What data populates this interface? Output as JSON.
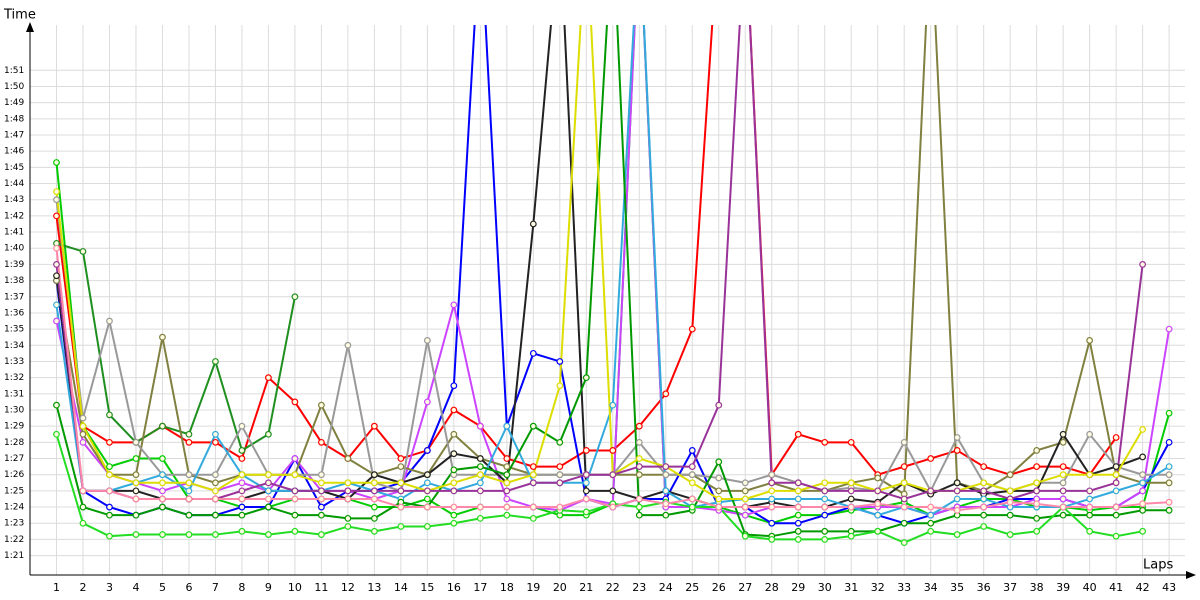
{
  "chart_data": {
    "type": "line",
    "x_label": "Laps",
    "y_label": "Time",
    "grid": true,
    "x": [
      1,
      2,
      3,
      4,
      5,
      6,
      7,
      8,
      9,
      10,
      11,
      12,
      13,
      14,
      15,
      16,
      17,
      18,
      19,
      20,
      21,
      22,
      23,
      24,
      25,
      26,
      27,
      28,
      29,
      30,
      31,
      32,
      33,
      34,
      35,
      36,
      37,
      38,
      39,
      40,
      41,
      42,
      43
    ],
    "xlim": [
      0,
      43.6
    ],
    "xticks": [
      1,
      2,
      3,
      4,
      5,
      6,
      7,
      8,
      9,
      10,
      11,
      12,
      13,
      14,
      15,
      16,
      17,
      18,
      19,
      20,
      21,
      22,
      23,
      24,
      25,
      26,
      27,
      28,
      29,
      30,
      31,
      32,
      33,
      34,
      35,
      36,
      37,
      38,
      39,
      40,
      41,
      42,
      43
    ],
    "ylim": [
      79.8,
      113.8
    ],
    "yticks": [
      {
        "value": 81,
        "label": "1:21"
      },
      {
        "value": 82,
        "label": "1:22"
      },
      {
        "value": 83,
        "label": "1:23"
      },
      {
        "value": 84,
        "label": "1:24"
      },
      {
        "value": 85,
        "label": "1:25"
      },
      {
        "value": 86,
        "label": "1:26"
      },
      {
        "value": 87,
        "label": "1:27"
      },
      {
        "value": 88,
        "label": "1:28"
      },
      {
        "value": 89,
        "label": "1:29"
      },
      {
        "value": 90,
        "label": "1:30"
      },
      {
        "value": 91,
        "label": "1:31"
      },
      {
        "value": 92,
        "label": "1:32"
      },
      {
        "value": 93,
        "label": "1:33"
      },
      {
        "value": 94,
        "label": "1:34"
      },
      {
        "value": 95,
        "label": "1:35"
      },
      {
        "value": 96,
        "label": "1:36"
      },
      {
        "value": 97,
        "label": "1:37"
      },
      {
        "value": 98,
        "label": "1:38"
      },
      {
        "value": 99,
        "label": "1:39"
      },
      {
        "value": 100,
        "label": "1:40"
      },
      {
        "value": 101,
        "label": "1:41"
      },
      {
        "value": 102,
        "label": "1:42"
      },
      {
        "value": 103,
        "label": "1:43"
      },
      {
        "value": 104,
        "label": "1:44"
      },
      {
        "value": 105,
        "label": "1:45"
      },
      {
        "value": 106,
        "label": "1:46"
      },
      {
        "value": 107,
        "label": "1:47"
      },
      {
        "value": 108,
        "label": "1:48"
      },
      {
        "value": 109,
        "label": "1:49"
      },
      {
        "value": 110,
        "label": "1:50"
      },
      {
        "value": 111,
        "label": "1:51"
      }
    ],
    "series": [
      {
        "color": "#ff0000",
        "values": [
          102,
          89,
          88,
          88,
          89,
          88,
          88,
          87,
          92,
          90.5,
          88,
          87,
          89,
          87,
          87.5,
          90,
          89,
          87,
          86.5,
          86.5,
          87.5,
          87.5,
          89,
          91,
          95,
          120,
          120,
          86,
          88.5,
          88,
          88,
          86,
          86.5,
          87,
          87.5,
          86.5,
          86,
          86.5,
          86.5,
          86,
          88.3,
          null,
          null
        ]
      },
      {
        "color": "#00cc00",
        "values": [
          105.3,
          89,
          86.5,
          87,
          87,
          84.5,
          84.5,
          84,
          84,
          84.5,
          84.5,
          84.5,
          84,
          84,
          84.5,
          83.5,
          84,
          84,
          84,
          83.5,
          83.5,
          84.2,
          120,
          84,
          84,
          84,
          83.5,
          83,
          83.5,
          83.5,
          83.8,
          84,
          84.3,
          83.5,
          84,
          84.5,
          84.5,
          84,
          84,
          83.8,
          84,
          84,
          89.8
        ]
      },
      {
        "color": "#1f8f1f",
        "values": [
          100.3,
          99.8,
          89.7,
          88,
          89,
          88.5,
          93,
          87.5,
          88.5,
          97,
          null,
          null,
          null,
          null,
          null,
          null,
          null,
          null,
          null,
          null,
          null,
          null,
          null,
          null,
          null,
          null,
          null,
          null,
          null,
          null,
          null,
          null,
          null,
          null,
          null,
          null,
          null,
          null,
          null,
          null,
          null,
          null,
          null
        ]
      },
      {
        "color": "#0000ff",
        "values": [
          98,
          85,
          84,
          83.5,
          84,
          83.5,
          83.5,
          84,
          84,
          87,
          84,
          85,
          85,
          85.5,
          87.5,
          91.5,
          120,
          89,
          93.5,
          93,
          84.5,
          84,
          84.5,
          84.5,
          87.5,
          84,
          84,
          83,
          83,
          83.5,
          84,
          83.5,
          83,
          83.5,
          84,
          84,
          84.5,
          84.5,
          84.5,
          84,
          84,
          85,
          88
        ]
      },
      {
        "color": "#cc44ff",
        "values": [
          95.5,
          88,
          86,
          85.5,
          85,
          85.5,
          85,
          85.5,
          85,
          87,
          85,
          85,
          84.5,
          85,
          90.5,
          96.5,
          89,
          84.5,
          84,
          83.8,
          84.5,
          84.2,
          120,
          84,
          84,
          83.8,
          83.5,
          84,
          84,
          84,
          84,
          84,
          84,
          83.5,
          84,
          84,
          84,
          84.5,
          84.5,
          84,
          84,
          85,
          95
        ]
      },
      {
        "color": "#808040",
        "values": [
          98,
          88.5,
          86,
          86,
          94.5,
          86,
          85.5,
          86,
          86,
          86,
          90.3,
          87,
          86,
          86.5,
          86,
          88.5,
          87,
          86.5,
          86,
          86,
          86,
          86,
          86,
          86,
          86,
          85,
          85,
          85.5,
          85,
          85,
          85.5,
          85.8,
          84.8,
          120,
          85.5,
          85,
          86,
          87.5,
          88,
          94.3,
          86,
          85.5,
          85.5
        ]
      },
      {
        "color": "#999999",
        "values": [
          103,
          89.5,
          95.5,
          88,
          86,
          86,
          86,
          89,
          86,
          86,
          86,
          94,
          85.5,
          85,
          94.3,
          86,
          86,
          86,
          86,
          86,
          86,
          86,
          88,
          86,
          86,
          85.8,
          85.5,
          86,
          85.5,
          85,
          85.2,
          85,
          88,
          85,
          88.3,
          85.5,
          85,
          85.5,
          85.5,
          88.5,
          86.5,
          86,
          86
        ]
      },
      {
        "color": "#222222",
        "values": [
          98.3,
          85,
          85,
          85,
          84.5,
          84.5,
          84.5,
          84.5,
          85,
          85,
          85,
          84.5,
          86,
          85.5,
          86,
          87.3,
          87,
          85.5,
          101.5,
          120,
          85,
          85,
          84.5,
          85,
          84.5,
          84,
          84,
          84.3,
          84,
          84,
          84.5,
          84.3,
          85.5,
          84.8,
          85.5,
          84.8,
          85,
          85,
          88.5,
          86,
          86.5,
          87.1,
          null
        ]
      },
      {
        "color": "#33aadd",
        "values": [
          96.5,
          85,
          85,
          85.5,
          86,
          85,
          88.5,
          86,
          85,
          85,
          85,
          85.5,
          85,
          84.5,
          85.5,
          85,
          85.5,
          89,
          85.5,
          85.5,
          85.5,
          90.3,
          120,
          85,
          84,
          84.3,
          84.5,
          84.5,
          84.5,
          84.5,
          84,
          83.5,
          84,
          83.5,
          84.5,
          84.5,
          84,
          84,
          84,
          84.5,
          85,
          85.5,
          86.5
        ]
      },
      {
        "color": "#009900",
        "values": [
          90.3,
          84,
          83.5,
          83.5,
          84,
          83.5,
          83.5,
          83.5,
          84,
          83.5,
          83.5,
          83.3,
          83.3,
          84.3,
          84,
          86.3,
          86.5,
          86,
          89,
          88,
          92,
          120,
          83.5,
          83.5,
          83.8,
          86.8,
          82.3,
          82.2,
          82.5,
          82.5,
          82.5,
          82.5,
          83,
          83,
          83.5,
          83.5,
          83.5,
          83.3,
          83.5,
          83.5,
          83.5,
          83.8,
          83.8
        ]
      },
      {
        "color": "#22dd22",
        "values": [
          88.5,
          83,
          82.2,
          82.3,
          82.3,
          82.3,
          82.3,
          82.5,
          82.3,
          82.5,
          82.3,
          82.8,
          82.5,
          82.8,
          82.8,
          83,
          83.3,
          83.5,
          83.3,
          83.8,
          83.7,
          84.2,
          84,
          84.3,
          84,
          84,
          82.2,
          82,
          82,
          82,
          82.2,
          82.5,
          81.8,
          82.5,
          82.3,
          82.8,
          82.3,
          82.5,
          84,
          82.5,
          82.2,
          82.5,
          null
        ]
      },
      {
        "color": "#dddd00",
        "values": [
          103.5,
          89,
          86,
          85.5,
          85.5,
          85.5,
          85,
          86,
          86,
          86,
          85.5,
          85.5,
          85.5,
          85.5,
          85,
          85.5,
          86,
          85.5,
          86,
          91.5,
          120,
          86,
          87,
          86.5,
          85.5,
          84.5,
          84.5,
          85,
          85,
          85.5,
          85.5,
          85,
          85.5,
          85,
          85,
          85.5,
          85,
          85.5,
          86,
          86,
          86,
          88.8,
          null
        ]
      },
      {
        "color": "#993399",
        "values": [
          99,
          85,
          85,
          84.5,
          84.5,
          84.5,
          84.5,
          85,
          85.5,
          85,
          85,
          85,
          85,
          85,
          85,
          85,
          85,
          85,
          85.5,
          85.5,
          86,
          86,
          86.5,
          86.5,
          86.5,
          90.3,
          120,
          85.5,
          85.5,
          85,
          85,
          85,
          84.5,
          85,
          85,
          85,
          84.5,
          85,
          85,
          85,
          85.5,
          99,
          null
        ]
      },
      {
        "color": "#ff88aa",
        "values": [
          100,
          85,
          85,
          84.5,
          84.5,
          84.5,
          84.5,
          84.5,
          84.5,
          84.5,
          84.5,
          84.5,
          84.5,
          84,
          84,
          84,
          84,
          84,
          84,
          84,
          84.5,
          84,
          84.5,
          84.2,
          84.5,
          84,
          84,
          84,
          84,
          84,
          84,
          84.2,
          84,
          84,
          83.8,
          84,
          84.3,
          84.2,
          84,
          84,
          84,
          84.2,
          84.3
        ]
      }
    ]
  }
}
